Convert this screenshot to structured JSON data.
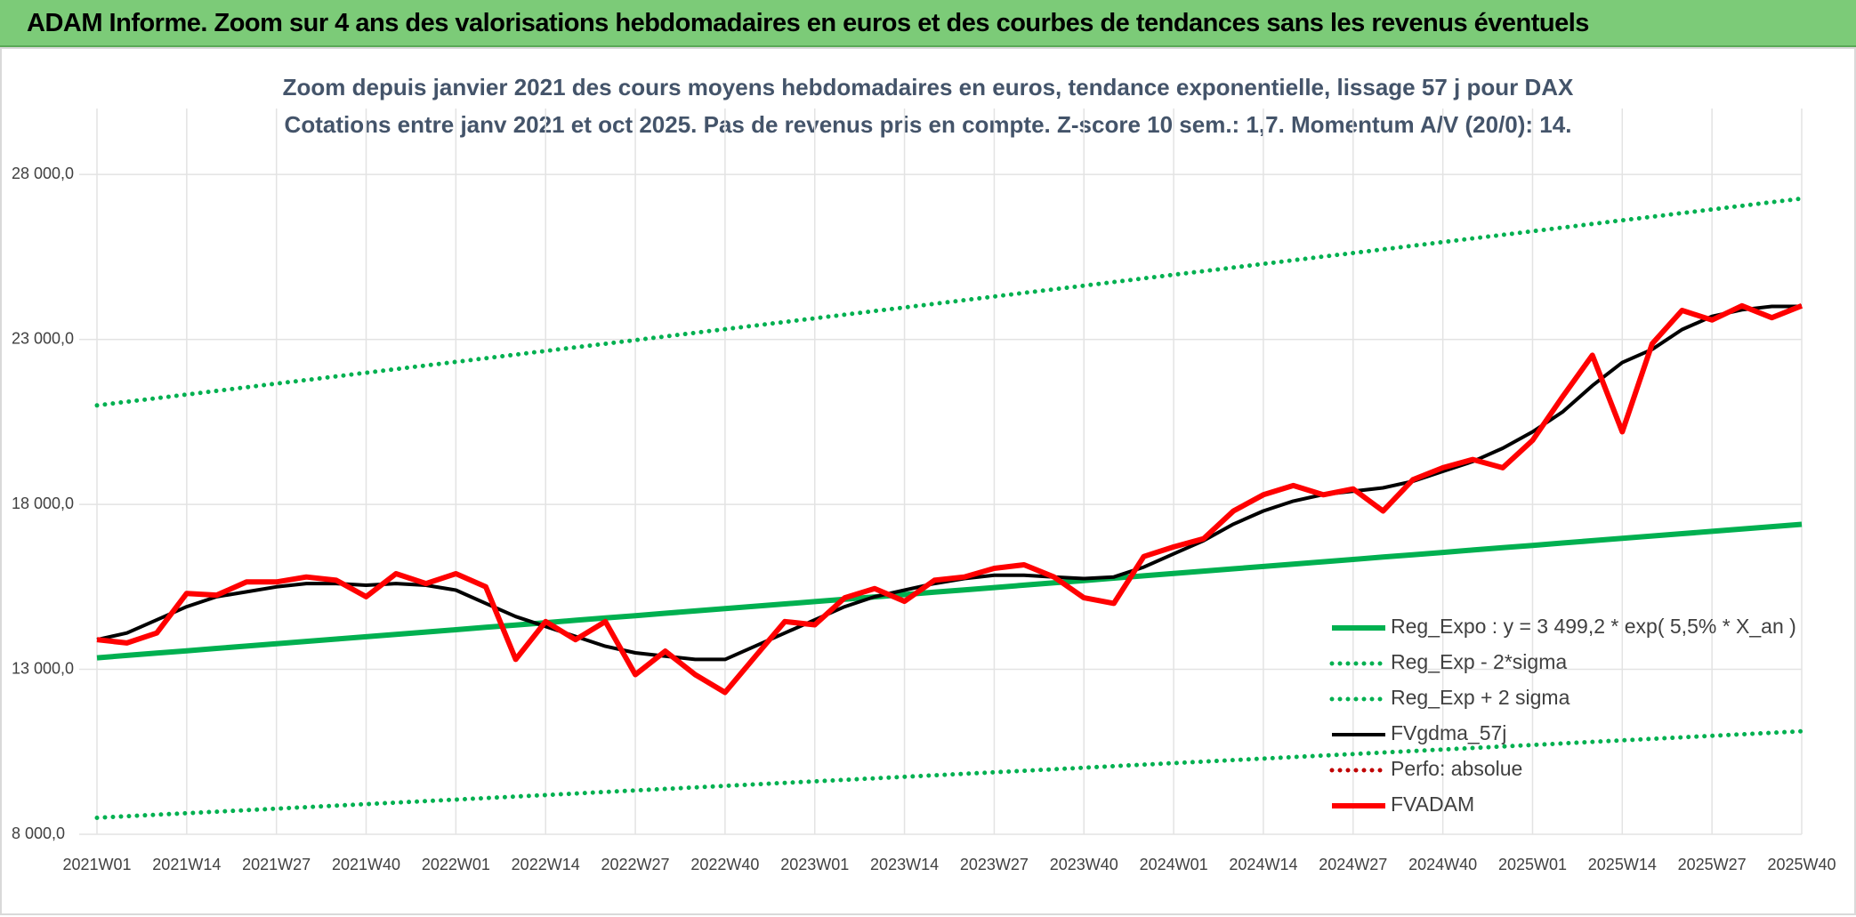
{
  "header": {
    "title": "ADAM Informe. Zoom sur 4 ans des valorisations hebdomadaires en euros et des courbes de tendances sans les revenus éventuels"
  },
  "chart_data": {
    "type": "line",
    "title": "Zoom depuis janvier 2021 des cours moyens hebdomadaires en euros, tendance exponentielle, lissage 57 j pour DAX",
    "subtitle": "Cotations entre janv 2021 et oct 2025. Pas de revenus pris en compte. Z-score 10 sem.: 1,7. Momentum A/V (20/0): 14.",
    "categories": [
      "2021W01",
      null,
      null,
      "2021W14",
      null,
      null,
      "2021W27",
      null,
      null,
      "2021W40",
      null,
      null,
      "2022W01",
      null,
      null,
      "2022W14",
      null,
      null,
      "2022W27",
      null,
      null,
      "2022W40",
      null,
      null,
      "2023W01",
      null,
      null,
      "2023W14",
      null,
      null,
      "2023W27",
      null,
      null,
      "2023W40",
      null,
      null,
      "2024W01",
      null,
      null,
      "2024W14",
      null,
      null,
      "2024W27",
      null,
      null,
      "2024W40",
      null,
      null,
      "2025W01",
      null,
      null,
      "2025W14",
      null,
      null,
      "2025W27",
      null,
      null,
      "2025W40"
    ],
    "series": [
      {
        "name": "Reg_Expo : y = 3 499,2 * exp( 5,5% *  X_an )",
        "color": "#00b050",
        "style": "solid",
        "values": [
          13350,
          13421,
          13492,
          13563,
          13634,
          13705,
          13776,
          13847,
          13918,
          13989,
          14060,
          14131,
          14202,
          14273,
          14344,
          14415,
          14486,
          14557,
          14628,
          14699,
          14770,
          14841,
          14912,
          14983,
          15054,
          15125,
          15196,
          15267,
          15338,
          15409,
          15480,
          15551,
          15622,
          15693,
          15764,
          15835,
          15906,
          15977,
          16048,
          16119,
          16190,
          16261,
          16332,
          16403,
          16474,
          16545,
          16616,
          16687,
          16758,
          16829,
          16900,
          16971,
          17042,
          17113,
          17184,
          17255,
          17326,
          17397
        ]
      },
      {
        "name": "Reg_Exp - 2*sigma",
        "color": "#00b050",
        "style": "dotted",
        "values": [
          8500,
          8546,
          8592,
          8638,
          8684,
          8730,
          8776,
          8822,
          8868,
          8914,
          8960,
          9006,
          9052,
          9098,
          9144,
          9190,
          9236,
          9282,
          9328,
          9374,
          9420,
          9466,
          9512,
          9558,
          9604,
          9650,
          9696,
          9742,
          9788,
          9834,
          9880,
          9926,
          9972,
          10018,
          10064,
          10110,
          10156,
          10202,
          10248,
          10294,
          10340,
          10386,
          10432,
          10478,
          10524,
          10570,
          10616,
          10662,
          10708,
          10754,
          10800,
          10846,
          10892,
          10938,
          10984,
          11030,
          11076,
          11122
        ]
      },
      {
        "name": "Reg_Exp + 2 sigma",
        "color": "#00b050",
        "style": "dotted",
        "values": [
          21000,
          21110,
          21220,
          21330,
          21440,
          21550,
          21660,
          21770,
          21880,
          21990,
          22100,
          22210,
          22320,
          22430,
          22540,
          22650,
          22760,
          22870,
          22980,
          23090,
          23200,
          23310,
          23420,
          23530,
          23640,
          23750,
          23860,
          23970,
          24080,
          24190,
          24300,
          24410,
          24520,
          24630,
          24740,
          24850,
          24960,
          25070,
          25180,
          25290,
          25400,
          25510,
          25620,
          25730,
          25840,
          25950,
          26060,
          26170,
          26280,
          26390,
          26500,
          26610,
          26720,
          26830,
          26940,
          27050,
          27160,
          27270
        ]
      },
      {
        "name": "FVgdma_57j",
        "color": "#000000",
        "style": "solid",
        "values": [
          13900,
          14100,
          14500,
          14900,
          15200,
          15350,
          15500,
          15600,
          15600,
          15550,
          15600,
          15550,
          15400,
          15000,
          14600,
          14300,
          14000,
          13700,
          13500,
          13400,
          13300,
          13300,
          13700,
          14100,
          14500,
          14900,
          15200,
          15400,
          15600,
          15750,
          15850,
          15850,
          15800,
          15750,
          15800,
          16100,
          16500,
          16900,
          17400,
          17800,
          18100,
          18300,
          18400,
          18500,
          18700,
          19000,
          19300,
          19700,
          20200,
          20800,
          21600,
          22300,
          22700,
          23300,
          23700,
          23900,
          24000,
          24000
        ]
      },
      {
        "name": "Perfo: absolue",
        "color": "#c00000",
        "style": "dotted",
        "values": [
          null,
          null,
          null,
          null,
          null,
          null,
          null,
          null,
          null,
          null,
          null,
          null,
          null,
          null,
          null,
          null,
          null,
          null,
          null,
          null,
          null,
          null,
          null,
          null,
          null,
          null,
          null,
          null,
          null,
          null,
          null,
          null,
          null,
          null,
          null,
          null,
          null,
          null,
          null,
          null,
          null,
          null,
          null,
          null,
          null,
          null,
          null,
          null,
          null,
          null,
          null,
          null,
          null,
          null,
          null,
          null,
          null,
          null
        ]
      },
      {
        "name": "FVADAM",
        "color": "#ff0000",
        "style": "solid",
        "values": [
          13900,
          13800,
          14100,
          15300,
          15250,
          15650,
          15650,
          15800,
          15700,
          15200,
          15900,
          15600,
          15900,
          15500,
          13300,
          14450,
          13900,
          14450,
          12840,
          13550,
          12840,
          12300,
          13380,
          14450,
          14350,
          15170,
          15450,
          15060,
          15700,
          15800,
          16060,
          16170,
          15800,
          15170,
          15000,
          16420,
          16710,
          16960,
          17800,
          18290,
          18570,
          18290,
          18470,
          17800,
          18750,
          19110,
          19360,
          19110,
          19940,
          21260,
          22520,
          20200,
          22870,
          23880,
          23590,
          24020,
          23660,
          24020
        ]
      }
    ],
    "ylim": [
      8000,
      30000
    ],
    "yticks": [
      {
        "value": 8000,
        "label": "8 000,0"
      },
      {
        "value": 13000,
        "label": "13 000,0"
      },
      {
        "value": 18000,
        "label": "18 000,0"
      },
      {
        "value": 23000,
        "label": "23 000,0"
      },
      {
        "value": 28000,
        "label": "28 000,0"
      }
    ],
    "grid": true,
    "legend": "lower right"
  }
}
